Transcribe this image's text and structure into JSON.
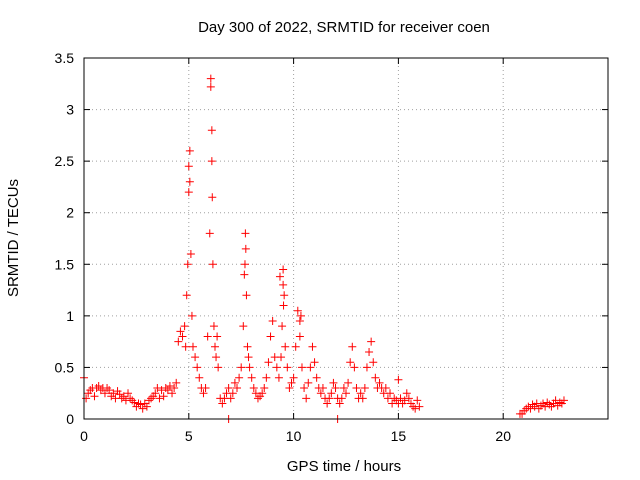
{
  "chart_data": {
    "type": "scatter",
    "title": "Day 300 of 2022, SRMTID for receiver coen",
    "xlabel": "GPS time / hours",
    "ylabel": "SRMTID / TECUs",
    "xlim": [
      0,
      25
    ],
    "ylim": [
      0,
      3.5
    ],
    "x_ticks": [
      0,
      5,
      10,
      15,
      20
    ],
    "x_tick_labels": [
      "0",
      "5",
      "10",
      "15",
      "20"
    ],
    "y_ticks": [
      0,
      0.5,
      1,
      1.5,
      2,
      2.5,
      3,
      3.5
    ],
    "y_tick_labels": [
      "0",
      "0.5",
      "1",
      "1.5",
      "2",
      "2.5",
      "3",
      "3.5"
    ],
    "grid": true,
    "marker": "plus",
    "series": [
      {
        "name": "SRMTID",
        "color": "#ff0000",
        "x": [
          0.0,
          0.1,
          0.2,
          0.3,
          0.4,
          0.5,
          0.6,
          0.7,
          0.8,
          0.9,
          1.0,
          1.1,
          1.2,
          1.3,
          1.4,
          1.5,
          1.6,
          1.7,
          1.8,
          1.9,
          2.0,
          2.1,
          2.2,
          2.3,
          2.4,
          2.5,
          2.6,
          2.7,
          2.8,
          2.9,
          3.0,
          3.1,
          3.2,
          3.3,
          3.4,
          3.5,
          3.6,
          3.7,
          3.8,
          3.9,
          4.0,
          4.1,
          4.2,
          4.3,
          4.4,
          4.5,
          4.6,
          4.7,
          4.8,
          4.85,
          4.9,
          4.95,
          5.0,
          5.05,
          5.1,
          5.15,
          5.2,
          5.3,
          5.4,
          5.5,
          5.6,
          5.7,
          5.8,
          5.9,
          6.0,
          6.05,
          6.1,
          6.15,
          6.2,
          6.25,
          6.3,
          6.35,
          6.4,
          6.5,
          6.6,
          6.7,
          6.8,
          6.9,
          7.0,
          7.1,
          7.2,
          7.3,
          7.4,
          7.5,
          7.6,
          7.65,
          7.7,
          7.75,
          7.8,
          7.85,
          7.9,
          8.0,
          8.1,
          8.2,
          8.3,
          8.4,
          8.5,
          8.6,
          8.7,
          8.8,
          8.9,
          9.0,
          9.1,
          9.2,
          9.3,
          9.4,
          9.45,
          9.5,
          9.55,
          9.6,
          9.7,
          9.8,
          9.9,
          10.0,
          10.1,
          10.2,
          10.3,
          10.4,
          10.5,
          10.6,
          10.7,
          10.8,
          10.9,
          11.0,
          11.1,
          11.2,
          11.3,
          11.4,
          11.5,
          11.6,
          11.7,
          11.8,
          11.9,
          12.0,
          12.1,
          12.2,
          12.3,
          12.4,
          12.5,
          12.6,
          12.7,
          12.8,
          12.9,
          13.0,
          13.1,
          13.2,
          13.3,
          13.4,
          13.5,
          13.6,
          13.7,
          13.8,
          13.9,
          14.0,
          14.1,
          14.2,
          14.3,
          14.4,
          14.5,
          14.6,
          14.7,
          14.8,
          14.9,
          15.0,
          15.1,
          15.2,
          15.3,
          15.4,
          15.5,
          15.6,
          15.7,
          15.8,
          15.9,
          16.0,
          20.8,
          20.9,
          21.0,
          21.1,
          21.2,
          21.3,
          21.4,
          21.5,
          21.6,
          21.7,
          21.8,
          21.9,
          22.0,
          22.1,
          22.2,
          22.3,
          22.4,
          22.5,
          22.6,
          22.7,
          22.8,
          22.9,
          5.0,
          5.05,
          6.05,
          6.1,
          6.12,
          7.68,
          7.72,
          9.35,
          9.5,
          9.52,
          10.3,
          10.35,
          6.9,
          12.1,
          15.0
        ],
        "y": [
          0.4,
          0.2,
          0.25,
          0.28,
          0.3,
          0.22,
          0.3,
          0.32,
          0.28,
          0.3,
          0.25,
          0.3,
          0.28,
          0.22,
          0.25,
          0.2,
          0.27,
          0.24,
          0.2,
          0.22,
          0.18,
          0.25,
          0.2,
          0.18,
          0.16,
          0.12,
          0.15,
          0.14,
          0.1,
          0.15,
          0.12,
          0.18,
          0.2,
          0.22,
          0.25,
          0.3,
          0.2,
          0.28,
          0.22,
          0.3,
          0.28,
          0.32,
          0.25,
          0.3,
          0.35,
          0.75,
          0.85,
          0.8,
          0.9,
          0.7,
          1.2,
          1.5,
          2.2,
          2.6,
          1.6,
          1.0,
          0.7,
          0.6,
          0.5,
          0.4,
          0.3,
          0.25,
          0.3,
          0.8,
          1.8,
          3.3,
          2.5,
          1.5,
          0.9,
          0.7,
          0.6,
          0.8,
          0.5,
          0.2,
          0.15,
          0.2,
          0.25,
          0.3,
          0.2,
          0.25,
          0.35,
          0.3,
          0.4,
          0.5,
          0.9,
          1.4,
          1.8,
          1.2,
          0.7,
          0.6,
          0.5,
          0.4,
          0.3,
          0.25,
          0.2,
          0.22,
          0.25,
          0.3,
          0.4,
          0.55,
          0.8,
          0.95,
          0.6,
          0.5,
          0.4,
          0.6,
          0.9,
          1.45,
          1.2,
          0.7,
          0.5,
          0.3,
          0.35,
          0.4,
          0.7,
          1.05,
          0.8,
          0.5,
          0.3,
          0.2,
          0.35,
          0.5,
          0.7,
          0.55,
          0.4,
          0.3,
          0.25,
          0.3,
          0.2,
          0.15,
          0.2,
          0.25,
          0.35,
          0.3,
          0.2,
          0.15,
          0.2,
          0.3,
          0.25,
          0.35,
          0.55,
          0.7,
          0.5,
          0.3,
          0.2,
          0.25,
          0.2,
          0.3,
          0.5,
          0.65,
          0.75,
          0.55,
          0.4,
          0.3,
          0.35,
          0.3,
          0.25,
          0.3,
          0.2,
          0.25,
          0.15,
          0.2,
          0.18,
          0.15,
          0.2,
          0.15,
          0.18,
          0.25,
          0.2,
          0.15,
          0.12,
          0.1,
          0.18,
          0.12,
          0.05,
          0.05,
          0.08,
          0.1,
          0.12,
          0.1,
          0.14,
          0.12,
          0.15,
          0.1,
          0.13,
          0.15,
          0.12,
          0.16,
          0.14,
          0.12,
          0.15,
          0.18,
          0.13,
          0.16,
          0.15,
          0.18,
          2.45,
          2.3,
          3.22,
          2.8,
          2.15,
          1.5,
          1.65,
          1.38,
          1.3,
          1.1,
          0.95,
          1.0,
          0.0,
          0.0,
          0.38
        ]
      }
    ]
  }
}
